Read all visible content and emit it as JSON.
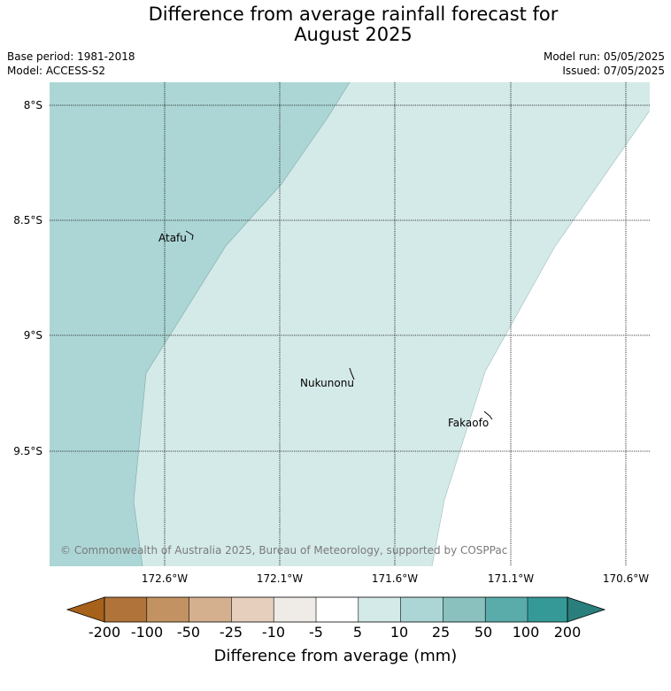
{
  "title": {
    "line1": "Difference from average rainfall forecast for",
    "line2": "August 2025"
  },
  "meta": {
    "base_period": "Base period: 1981-2018",
    "model": "Model: ACCESS-S2",
    "model_run": "Model run: 05/05/2025",
    "issued": "Issued: 07/05/2025"
  },
  "map": {
    "lat_labels": [
      "8°S",
      "8.5°S",
      "9°S",
      "9.5°S"
    ],
    "lon_labels": [
      "172.6°W",
      "172.1°W",
      "171.6°W",
      "171.1°W",
      "170.6°W"
    ],
    "places": [
      "Atafu",
      "Nukunonu",
      "Fakaofo"
    ],
    "copyright": "© Commonwealth of Australia 2025, Bureau of Meteorology, supported by COSPPac",
    "zone_colors": {
      "10_to_25": "#acd6d5",
      "5_to_10": "#d4eae8"
    }
  },
  "legend": {
    "ticks": [
      "-200",
      "-100",
      "-50",
      "-25",
      "-10",
      "-5",
      "5",
      "10",
      "25",
      "50",
      "100",
      "200"
    ],
    "colors": [
      "#a6611a",
      "#b0743a",
      "#c39263",
      "#d4b08f",
      "#e6cfbd",
      "#efebe6",
      "#ffffff",
      "#d4eae8",
      "#acd6d5",
      "#8ac1be",
      "#5aacaa",
      "#359a97",
      "#2a7f7c"
    ],
    "label": "Difference from average (mm)"
  }
}
